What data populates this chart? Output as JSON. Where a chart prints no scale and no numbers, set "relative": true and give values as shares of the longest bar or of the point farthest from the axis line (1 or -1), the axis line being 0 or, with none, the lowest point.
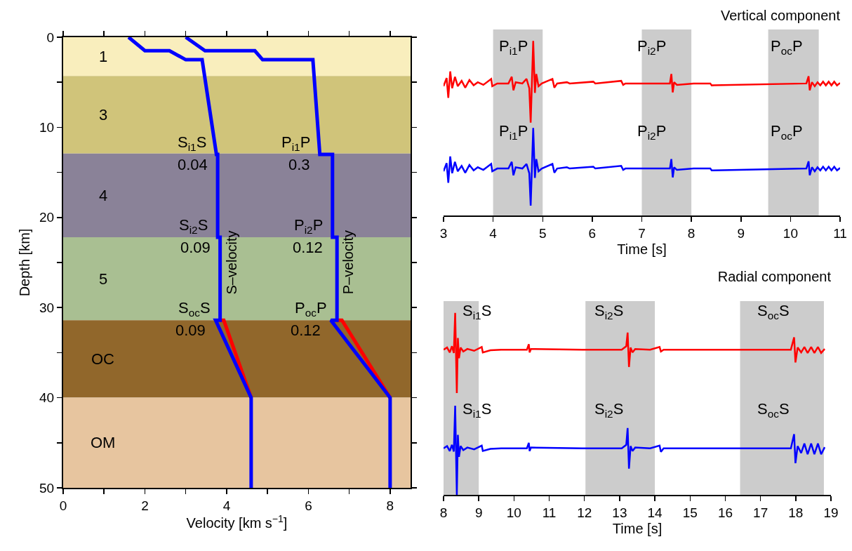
{
  "chart_data": [
    {
      "type": "line",
      "xlabel": "Velocity [km s$^{−1}$]",
      "ylabel": "Depth [km]",
      "xlim": [
        0,
        8.5
      ],
      "xticks": [
        0,
        {
          "value": 1,
          "label": null
        },
        2,
        {
          "value": 3,
          "label": null
        },
        4,
        {
          "value": 5,
          "label": null
        },
        6,
        {
          "value": 7,
          "label": null
        },
        8
      ],
      "ylim": [
        50,
        0
      ],
      "yticks": [
        0,
        {
          "value": 5,
          "label": null
        },
        10,
        {
          "value": 15,
          "label": null
        },
        20,
        {
          "value": 25,
          "label": null
        },
        30,
        {
          "value": 35,
          "label": null
        },
        40,
        {
          "value": 45,
          "label": null
        },
        50
      ],
      "bands": [
        {
          "axis": "y",
          "from": 0,
          "to": 4.3,
          "label": "1",
          "color": "#f9eebd"
        },
        {
          "axis": "y",
          "from": 4.3,
          "to": 12.9,
          "label": "3",
          "color": "#d0c47a"
        },
        {
          "axis": "y",
          "from": 12.9,
          "to": 22.2,
          "label": "4",
          "color": "#8a8298"
        },
        {
          "axis": "y",
          "from": 22.2,
          "to": 31.4,
          "label": "5",
          "color": "#a9bf92"
        },
        {
          "axis": "y",
          "from": 31.4,
          "to": 40,
          "label": "OC",
          "color": "#91672b"
        },
        {
          "axis": "y",
          "from": 40,
          "to": 50,
          "label": "OM",
          "color": "#e7c59f"
        }
      ],
      "series": [
        {
          "color": "#ff0000",
          "x": [
            3.84,
            3.93,
            4.6
          ],
          "values": [
            31.4,
            31.4,
            40
          ]
        },
        {
          "color": "#ff0000",
          "x": [
            6.7,
            6.82,
            8.0
          ],
          "values": [
            31.4,
            31.4,
            40
          ]
        },
        {
          "name": "S–velocity",
          "color": "#0000ff",
          "x": [
            1.6,
            2.0,
            2.6,
            3.0,
            3.4,
            3.75,
            3.78,
            3.78,
            3.84,
            3.84,
            3.73,
            4.6,
            4.6
          ],
          "values": [
            0,
            1.5,
            1.5,
            2.5,
            2.5,
            13,
            13,
            22.2,
            22.2,
            31.4,
            31.4,
            40,
            50
          ]
        },
        {
          "name": "P–velocity",
          "color": "#0000ff",
          "x": [
            3.0,
            3.47,
            4.69,
            4.88,
            6.11,
            6.28,
            6.59,
            6.59,
            6.7,
            6.7,
            6.55,
            8.0,
            8.0
          ],
          "values": [
            0,
            1.5,
            1.5,
            2.5,
            2.5,
            13,
            13,
            22.2,
            22.2,
            31.4,
            31.4,
            40,
            50
          ]
        }
      ],
      "annotations": [
        {
          "text": "S$_{i1}$S",
          "x": 3.75,
          "y": 13
        },
        {
          "text": "0.04",
          "x": 3.78,
          "y": 13
        },
        {
          "text": "S$_{i2}$S",
          "x": 3.78,
          "y": 22.2
        },
        {
          "text": "0.09",
          "x": 3.84,
          "y": 22.2
        },
        {
          "text": "S$_{oc}$S",
          "x": 3.84,
          "y": 31.4
        },
        {
          "text": "0.09",
          "x": 3.73,
          "y": 31.4
        },
        {
          "text": "P$_{i1}$P",
          "x": 6.28,
          "y": 13
        },
        {
          "text": "0.3",
          "x": 6.28,
          "y": 13
        },
        {
          "text": "P$_{i2}$P",
          "x": 6.59,
          "y": 22.2
        },
        {
          "text": "0.12",
          "x": 6.59,
          "y": 22.2
        },
        {
          "text": "P$_{oc}$P",
          "x": 6.7,
          "y": 31.4
        },
        {
          "text": "0.12",
          "x": 6.55,
          "y": 31.4
        }
      ]
    },
    {
      "type": "line",
      "title": "Vertical component",
      "xlabel": "Time [s]",
      "relative": true,
      "tick_labels": "x",
      "xlim": [
        3,
        11
      ],
      "xticks": [
        3,
        4,
        5,
        6,
        7,
        8,
        9,
        10,
        11
      ],
      "bands": [
        {
          "axis": "x",
          "from": 4.0,
          "to": 5.0,
          "color": "#cccccc",
          "label": "P$_{i1}$P"
        },
        {
          "axis": "x",
          "from": 7.0,
          "to": 8.0,
          "color": "#cccccc",
          "label": "P$_{i2}$P"
        },
        {
          "axis": "x",
          "from": 9.55,
          "to": 10.57,
          "color": "#cccccc",
          "label": "P$_{oc}$P"
        }
      ],
      "x": [
        3.0,
        3.062,
        3.096,
        3.135,
        3.174,
        3.23,
        3.287,
        3.365,
        3.438,
        3.522,
        3.607,
        3.691,
        3.803,
        3.961,
        3.983,
        4.084,
        4.309,
        4.376,
        4.41,
        4.455,
        4.59,
        4.674,
        4.73,
        4.758,
        4.809,
        4.843,
        4.871,
        4.916,
        4.983,
        5.197,
        5.236,
        5.292,
        5.489,
        5.545,
        6.022,
        6.062,
        6.584,
        6.624,
        6.669,
        7.567,
        7.596,
        7.624,
        7.652,
        7.708,
        8.045,
        8.382,
        8.41,
        10.32,
        10.365,
        10.388,
        10.433,
        10.489,
        10.545,
        10.601,
        10.657,
        10.713,
        10.77,
        10.826,
        10.882,
        10.938,
        11.0
      ],
      "series": [
        {
          "color": "#ff0000",
          "values": [
            0.74,
            0.787,
            0.674,
            0.825,
            0.729,
            0.794,
            0.74,
            0.771,
            0.732,
            0.776,
            0.745,
            0.763,
            0.748,
            0.782,
            0.74,
            0.756,
            0.756,
            0.794,
            0.717,
            0.763,
            0.756,
            0.782,
            0.729,
            0.532,
            1.0,
            0.702,
            0.81,
            0.74,
            0.756,
            0.782,
            0.732,
            0.756,
            0.763,
            0.756,
            0.766,
            0.756,
            0.771,
            0.748,
            0.756,
            0.756,
            0.81,
            0.705,
            0.763,
            0.748,
            0.756,
            0.756,
            0.745,
            0.756,
            0.797,
            0.717,
            0.763,
            0.74,
            0.763,
            0.745,
            0.766,
            0.745,
            0.766,
            0.745,
            0.766,
            0.745,
            0.759
          ]
        },
        {
          "color": "#0000ff",
          "values": [
            0.253,
            0.3,
            0.187,
            0.338,
            0.242,
            0.307,
            0.253,
            0.284,
            0.245,
            0.289,
            0.258,
            0.276,
            0.261,
            0.295,
            0.253,
            0.269,
            0.269,
            0.307,
            0.23,
            0.276,
            0.269,
            0.295,
            0.242,
            0.056,
            0.501,
            0.215,
            0.323,
            0.253,
            0.269,
            0.295,
            0.245,
            0.269,
            0.276,
            0.269,
            0.279,
            0.269,
            0.284,
            0.261,
            0.269,
            0.269,
            0.323,
            0.218,
            0.276,
            0.261,
            0.269,
            0.269,
            0.258,
            0.269,
            0.31,
            0.23,
            0.276,
            0.253,
            0.276,
            0.258,
            0.279,
            0.258,
            0.279,
            0.258,
            0.279,
            0.258,
            0.272
          ]
        }
      ]
    },
    {
      "type": "line",
      "title": "Radial component",
      "xlabel": "Time [s]",
      "relative": true,
      "tick_labels": "x",
      "xlim": [
        8,
        19
      ],
      "xticks": [
        8,
        9,
        10,
        11,
        12,
        13,
        14,
        15,
        16,
        17,
        18,
        19
      ],
      "bands": [
        {
          "axis": "x",
          "from": 8.0,
          "to": 9.0,
          "color": "#cccccc",
          "label": "S$_{i1}$S"
        },
        {
          "axis": "x",
          "from": 12.03,
          "to": 14.0,
          "color": "#cccccc",
          "label": "S$_{i2}$S"
        },
        {
          "axis": "x",
          "from": 16.42,
          "to": 18.8,
          "color": "#cccccc",
          "label": "S$_{oc}$S"
        }
      ],
      "x": [
        8.0,
        8.1,
        8.177,
        8.238,
        8.292,
        8.33,
        8.377,
        8.407,
        8.438,
        8.484,
        8.561,
        8.676,
        8.868,
        9.084,
        9.115,
        9.33,
        9.637,
        10.367,
        10.421,
        10.444,
        10.483,
        11.943,
        13.058,
        13.188,
        13.227,
        13.265,
        13.311,
        13.365,
        13.442,
        13.865,
        14.134,
        14.172,
        14.249,
        17.862,
        17.954,
        17.992,
        18.054,
        18.154,
        18.246,
        18.338,
        18.438,
        18.53,
        18.63,
        18.722,
        18.822
      ],
      "series": [
        {
          "color": "#ff0000",
          "values": [
            0.798,
            0.81,
            0.783,
            0.817,
            0.78,
            1.0,
            0.56,
            0.862,
            0.751,
            0.81,
            0.788,
            0.802,
            0.792,
            0.813,
            0.783,
            0.795,
            0.798,
            0.798,
            0.828,
            0.783,
            0.802,
            0.798,
            0.798,
            0.817,
            0.892,
            0.703,
            0.81,
            0.783,
            0.802,
            0.798,
            0.813,
            0.788,
            0.798,
            0.798,
            0.866,
            0.728,
            0.81,
            0.783,
            0.813,
            0.78,
            0.813,
            0.78,
            0.813,
            0.78,
            0.802
          ]
        },
        {
          "color": "#0000ff",
          "values": [
            0.256,
            0.268,
            0.241,
            0.275,
            0.238,
            0.49,
            0.0,
            0.33,
            0.209,
            0.268,
            0.246,
            0.26,
            0.25,
            0.271,
            0.241,
            0.253,
            0.256,
            0.256,
            0.286,
            0.241,
            0.26,
            0.256,
            0.256,
            0.275,
            0.367,
            0.144,
            0.268,
            0.241,
            0.26,
            0.256,
            0.271,
            0.236,
            0.256,
            0.256,
            0.334,
            0.174,
            0.268,
            0.23,
            0.282,
            0.223,
            0.282,
            0.223,
            0.282,
            0.223,
            0.262
          ]
        }
      ]
    }
  ]
}
